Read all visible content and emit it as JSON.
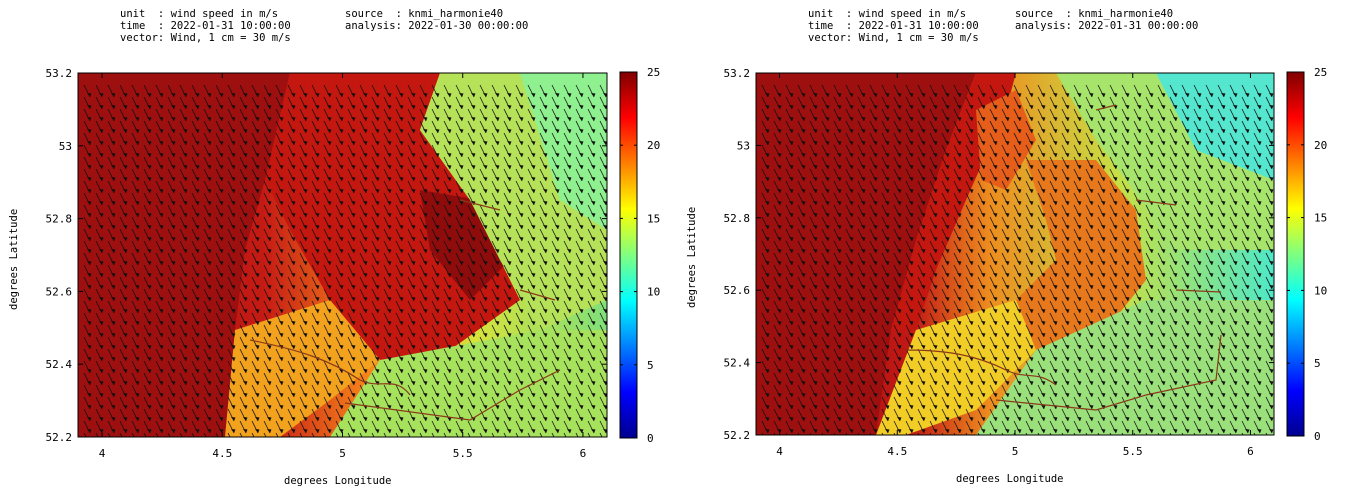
{
  "panels": [
    {
      "header": {
        "unit": "unit  : wind speed in m/s",
        "time": "time  : 2022-01-31 10:00:00",
        "vector": "vector: Wind, 1 cm = 30 m/s",
        "source": "source  : knmi_harmonie40",
        "analysis": "analysis: 2022-01-30 00:00:00"
      },
      "ylabel": "degrees Latitude",
      "xlabel": "degrees Longitude",
      "x_ticks": [
        "4",
        "4.5",
        "5",
        "5.5",
        "6"
      ],
      "y_ticks": [
        "53.2",
        "53",
        "52.8",
        "52.6",
        "52.4",
        "52.2"
      ],
      "colorbar_ticks": [
        "25",
        "20",
        "15",
        "10",
        "5",
        "0"
      ]
    },
    {
      "header": {
        "unit": "unit  : wind speed in m/s",
        "time": "time  : 2022-01-31 10:00:00",
        "vector": "vector: Wind, 1 cm = 30 m/s",
        "source": "source  : knmi_harmonie40",
        "analysis": "analysis: 2022-01-31 00:00:00"
      },
      "ylabel": "degrees Latitude",
      "xlabel": "degrees Longitude",
      "x_ticks": [
        "4",
        "4.5",
        "5",
        "5.5",
        "6"
      ],
      "y_ticks": [
        "53.2",
        "53",
        "52.8",
        "52.6",
        "52.4",
        "52.2"
      ],
      "colorbar_ticks": [
        "25",
        "20",
        "15",
        "10",
        "5",
        "0"
      ]
    }
  ],
  "map": {
    "lon_range": [
      3.9,
      6.1
    ],
    "lat_range": [
      52.2,
      53.2
    ],
    "value_range": [
      0,
      25
    ],
    "colormap": "jet",
    "vector_color": "#111111",
    "coast_color": "#8b3a1a"
  }
}
